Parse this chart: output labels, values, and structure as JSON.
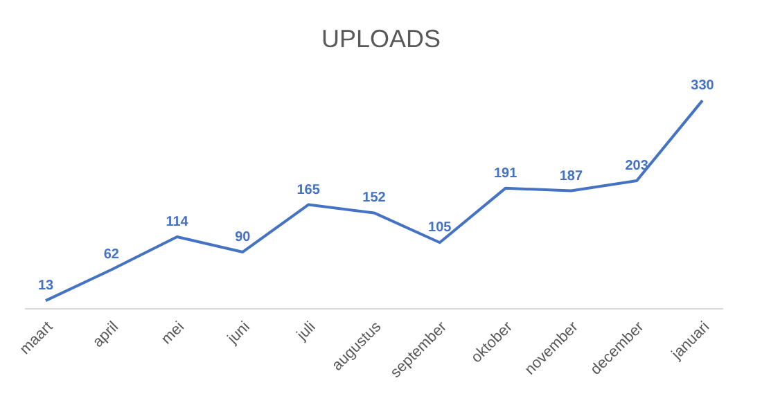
{
  "chart_data": {
    "type": "line",
    "title": "UPLOADS",
    "categories": [
      "maart",
      "april",
      "mei",
      "juni",
      "juli",
      "augustus",
      "september",
      "oktober",
      "november",
      "december",
      "januari"
    ],
    "series": [
      {
        "color": "#4472c4",
        "values": [
          13,
          62,
          114,
          90,
          165,
          152,
          105,
          191,
          187,
          203,
          330
        ]
      }
    ],
    "data_labels": true,
    "marker": "none",
    "tick_labels": "x"
  }
}
